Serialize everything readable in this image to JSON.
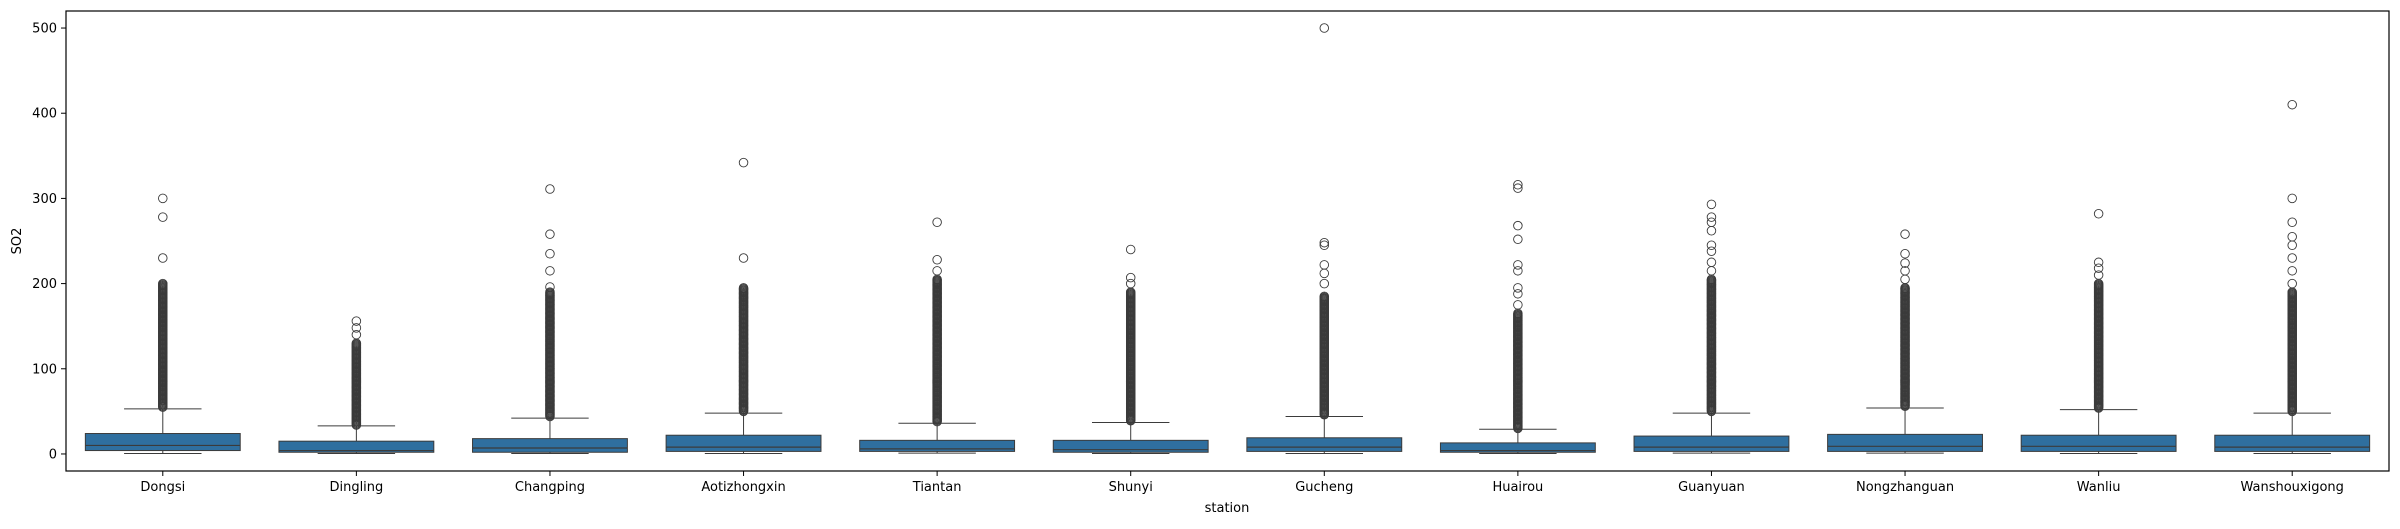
{
  "chart_data": {
    "type": "box",
    "title": "",
    "xlabel": "station",
    "ylabel": "SO2",
    "ylim": [
      -20,
      520
    ],
    "yticks": [
      0,
      100,
      200,
      300,
      400,
      500
    ],
    "grid": false,
    "box_color": "#2f6f9f",
    "categories": [
      "Dongsi",
      "Dingling",
      "Changping",
      "Aotizhongxin",
      "Tiantan",
      "Shunyi",
      "Gucheng",
      "Huairou",
      "Guanyuan",
      "Nongzhanguan",
      "Wanliu",
      "Wanshouxigong"
    ],
    "boxes": [
      {
        "station": "Dongsi",
        "whislo": 0.5,
        "q1": 4,
        "med": 10,
        "q3": 24,
        "whishi": 53,
        "dense_from": 55,
        "dense_to": 200,
        "fliers": [
          230,
          278,
          300
        ]
      },
      {
        "station": "Dingling",
        "whislo": 0.5,
        "q1": 2,
        "med": 4,
        "q3": 15,
        "whishi": 33,
        "dense_from": 34,
        "dense_to": 130,
        "fliers": [
          140,
          148,
          156
        ]
      },
      {
        "station": "Changping",
        "whislo": 0.5,
        "q1": 2,
        "med": 7,
        "q3": 18,
        "whishi": 42,
        "dense_from": 44,
        "dense_to": 190,
        "fliers": [
          196,
          215,
          235,
          258,
          311
        ]
      },
      {
        "station": "Aotizhongxin",
        "whislo": 0.5,
        "q1": 3,
        "med": 8,
        "q3": 22,
        "whishi": 48,
        "dense_from": 50,
        "dense_to": 195,
        "fliers": [
          230,
          342
        ]
      },
      {
        "station": "Tiantan",
        "whislo": 1,
        "q1": 3,
        "med": 6,
        "q3": 16,
        "whishi": 36,
        "dense_from": 38,
        "dense_to": 205,
        "fliers": [
          215,
          228,
          272
        ]
      },
      {
        "station": "Shunyi",
        "whislo": 0.5,
        "q1": 2,
        "med": 5,
        "q3": 16,
        "whishi": 37,
        "dense_from": 39,
        "dense_to": 190,
        "fliers": [
          200,
          207,
          240
        ]
      },
      {
        "station": "Gucheng",
        "whislo": 0.5,
        "q1": 3,
        "med": 8,
        "q3": 19,
        "whishi": 44,
        "dense_from": 46,
        "dense_to": 185,
        "fliers": [
          200,
          212,
          222,
          245,
          248,
          500
        ]
      },
      {
        "station": "Huairou",
        "whislo": 0.5,
        "q1": 2,
        "med": 4,
        "q3": 13,
        "whishi": 29,
        "dense_from": 30,
        "dense_to": 165,
        "fliers": [
          175,
          188,
          195,
          215,
          222,
          252,
          268,
          312,
          316
        ]
      },
      {
        "station": "Guanyuan",
        "whislo": 1,
        "q1": 3,
        "med": 8,
        "q3": 21,
        "whishi": 48,
        "dense_from": 50,
        "dense_to": 205,
        "fliers": [
          215,
          225,
          238,
          245,
          262,
          272,
          278,
          293
        ]
      },
      {
        "station": "Nongzhanguan",
        "whislo": 1,
        "q1": 3,
        "med": 9,
        "q3": 23,
        "whishi": 54,
        "dense_from": 56,
        "dense_to": 195,
        "fliers": [
          205,
          215,
          224,
          235,
          258
        ]
      },
      {
        "station": "Wanliu",
        "whislo": 0.5,
        "q1": 3,
        "med": 9,
        "q3": 22,
        "whishi": 52,
        "dense_from": 54,
        "dense_to": 200,
        "fliers": [
          210,
          218,
          225,
          282
        ]
      },
      {
        "station": "Wanshouxigong",
        "whislo": 0.5,
        "q1": 3,
        "med": 8,
        "q3": 22,
        "whishi": 48,
        "dense_from": 50,
        "dense_to": 190,
        "fliers": [
          200,
          215,
          230,
          245,
          255,
          272,
          300,
          410
        ]
      }
    ]
  }
}
